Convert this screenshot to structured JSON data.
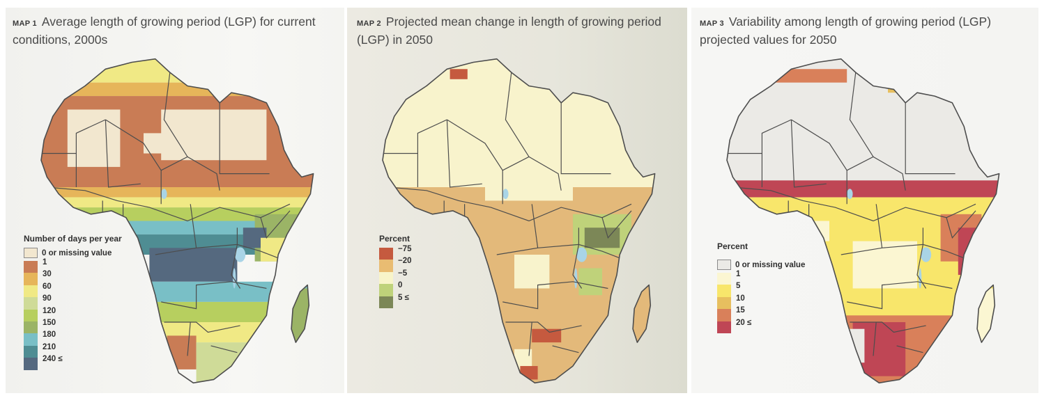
{
  "figure": {
    "panels": [
      {
        "id": "map1",
        "tag": "MAP 1",
        "title": "Average length of growing period (LGP) for current conditions, 2000s",
        "legend": {
          "title": "Number of days per year",
          "missing": {
            "label": "0 or missing value",
            "color": "#f2e7cf"
          },
          "breaks": [
            "1",
            "30",
            "60",
            "90",
            "120",
            "150",
            "180",
            "210",
            "240 ≤"
          ],
          "colors": [
            "#c97c55",
            "#e6b55a",
            "#f0e985",
            "#cfdb98",
            "#b7cf5f",
            "#9bb466",
            "#79bfc6",
            "#4f8d93",
            "#55697f"
          ]
        },
        "map_palette": {
          "bands": [
            "#f2e7cf",
            "#c97c55",
            "#e6b55a",
            "#f0e985",
            "#cfdb98",
            "#b7cf5f",
            "#9bb466",
            "#79bfc6",
            "#4f8d93",
            "#55697f"
          ],
          "water": "#a9d4e6",
          "border": "#4d4d4d"
        }
      },
      {
        "id": "map2",
        "tag": "MAP 2",
        "title": "Projected mean change in length of growing period (LGP) in 2050",
        "legend": {
          "title": "Percent",
          "missing": null,
          "breaks": [
            "−75",
            "−20",
            "−5",
            "0",
            "5 ≤"
          ],
          "colors": [
            "#c55a3f",
            "#e9bc72",
            "#f8f4c9",
            "#bfd27a",
            "#7c8757"
          ]
        },
        "map_palette": {
          "bands": [
            "#f8f3cc",
            "#e3b97a",
            "#c55a3f",
            "#bfd27a",
            "#7c8757"
          ],
          "water": "#a9d4e6",
          "border": "#4d4d4d"
        }
      },
      {
        "id": "map3",
        "tag": "MAP 3",
        "title": "Variability among length of growing period (LGP) projected values for 2050",
        "legend": {
          "title": "Percent",
          "missing": {
            "label": "0 or missing value",
            "color": "#ebeae6"
          },
          "breaks": [
            "1",
            "5",
            "10",
            "15",
            "20 ≤"
          ],
          "colors": [
            "#fbf6d2",
            "#f8e66b",
            "#e7bf5f",
            "#d9805a",
            "#bf4655"
          ]
        },
        "map_palette": {
          "bands": [
            "#ebeae6",
            "#fbf6d2",
            "#f8e66b",
            "#e7bf5f",
            "#d9805a",
            "#bf4655"
          ],
          "water": "#a9d4e6",
          "border": "#4d4d4d"
        }
      }
    ]
  }
}
